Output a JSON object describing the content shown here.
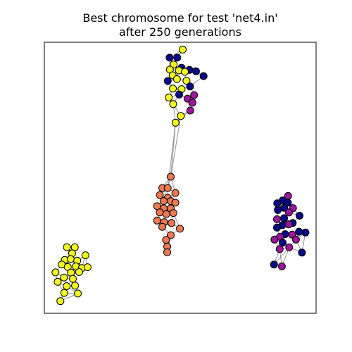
{
  "title": {
    "line1": "Best chromosome for test 'net4.in'",
    "line2": "after 250 generations"
  },
  "colors": {
    "yellow": "#f0f921",
    "navy": "#0d0887",
    "purple": "#9c179e",
    "salmon": "#ed7953",
    "edge": "#808080"
  },
  "graph": {
    "clusters": [
      {
        "name": "top-cluster",
        "nodes": [
          [
            "yellow",
            0.509,
            0.027
          ],
          [
            "navy",
            0.461,
            0.057
          ],
          [
            "navy",
            0.489,
            0.057
          ],
          [
            "yellow",
            0.476,
            0.082
          ],
          [
            "navy",
            0.505,
            0.094
          ],
          [
            "navy",
            0.534,
            0.102
          ],
          [
            "yellow",
            0.462,
            0.101
          ],
          [
            "navy",
            0.558,
            0.107
          ],
          [
            "yellow",
            0.495,
            0.104
          ],
          [
            "yellow",
            0.517,
            0.109
          ],
          [
            "navy",
            0.586,
            0.125
          ],
          [
            "yellow",
            0.472,
            0.122
          ],
          [
            "navy",
            0.454,
            0.143
          ],
          [
            "yellow",
            0.488,
            0.136
          ],
          [
            "yellow",
            0.523,
            0.142
          ],
          [
            "navy",
            0.536,
            0.163
          ],
          [
            "yellow",
            0.473,
            0.171
          ],
          [
            "yellow",
            0.505,
            0.173
          ],
          [
            "navy",
            0.496,
            0.193
          ],
          [
            "purple",
            0.551,
            0.195
          ],
          [
            "yellow",
            0.458,
            0.204
          ],
          [
            "purple",
            0.527,
            0.208
          ],
          [
            "purple",
            0.545,
            0.223
          ],
          [
            "yellow",
            0.474,
            0.228
          ],
          [
            "purple",
            0.537,
            0.252
          ],
          [
            "yellow",
            0.502,
            0.272
          ],
          [
            "yellow",
            0.483,
            0.297
          ]
        ]
      },
      {
        "name": "center-cluster",
        "nodes": [
          [
            "salmon",
            0.465,
            0.496
          ],
          [
            "salmon",
            0.434,
            0.538
          ],
          [
            "salmon",
            0.454,
            0.538
          ],
          [
            "salmon",
            0.482,
            0.556
          ],
          [
            "salmon",
            0.425,
            0.564
          ],
          [
            "salmon",
            0.454,
            0.574
          ],
          [
            "salmon",
            0.439,
            0.586
          ],
          [
            "salmon",
            0.465,
            0.586
          ],
          [
            "salmon",
            0.482,
            0.592
          ],
          [
            "salmon",
            0.415,
            0.605
          ],
          [
            "salmon",
            0.439,
            0.613
          ],
          [
            "salmon",
            0.465,
            0.613
          ],
          [
            "salmon",
            0.425,
            0.628
          ],
          [
            "salmon",
            0.449,
            0.634
          ],
          [
            "salmon",
            0.475,
            0.63
          ],
          [
            "salmon",
            0.415,
            0.658
          ],
          [
            "salmon",
            0.441,
            0.664
          ],
          [
            "salmon",
            0.468,
            0.667
          ],
          [
            "salmon",
            0.434,
            0.681
          ],
          [
            "salmon",
            0.499,
            0.688
          ],
          [
            "salmon",
            0.465,
            0.712
          ],
          [
            "salmon",
            0.448,
            0.729
          ],
          [
            "salmon",
            0.452,
            0.754
          ],
          [
            "salmon",
            0.452,
            0.775
          ]
        ]
      },
      {
        "name": "right-cluster",
        "nodes": [
          [
            "purple",
            0.897,
            0.567
          ],
          [
            "navy",
            0.877,
            0.584
          ],
          [
            "navy",
            0.896,
            0.592
          ],
          [
            "navy",
            0.857,
            0.594
          ],
          [
            "navy",
            0.882,
            0.611
          ],
          [
            "purple",
            0.915,
            0.612
          ],
          [
            "navy",
            0.859,
            0.619
          ],
          [
            "purple",
            0.9,
            0.628
          ],
          [
            "navy",
            0.939,
            0.64
          ],
          [
            "navy",
            0.882,
            0.649
          ],
          [
            "purple",
            0.856,
            0.653
          ],
          [
            "navy",
            0.914,
            0.667
          ],
          [
            "purple",
            0.899,
            0.672
          ],
          [
            "navy",
            0.876,
            0.675
          ],
          [
            "navy",
            0.856,
            0.684
          ],
          [
            "navy",
            0.937,
            0.699
          ],
          [
            "navy",
            0.961,
            0.702
          ],
          [
            "purple",
            0.912,
            0.71
          ],
          [
            "navy",
            0.886,
            0.708
          ],
          [
            "purple",
            0.867,
            0.718
          ],
          [
            "purple",
            0.847,
            0.728
          ],
          [
            "purple",
            0.926,
            0.728
          ],
          [
            "navy",
            0.877,
            0.74
          ],
          [
            "purple",
            0.901,
            0.757
          ],
          [
            "purple",
            0.866,
            0.763
          ],
          [
            "navy",
            0.948,
            0.776
          ],
          [
            "navy",
            0.845,
            0.82
          ],
          [
            "purple",
            0.874,
            0.827
          ]
        ]
      },
      {
        "name": "bottom-left-cluster",
        "nodes": [
          [
            "yellow",
            0.083,
            0.756
          ],
          [
            "yellow",
            0.112,
            0.756
          ],
          [
            "yellow",
            0.102,
            0.779
          ],
          [
            "yellow",
            0.151,
            0.786
          ],
          [
            "yellow",
            0.075,
            0.803
          ],
          [
            "yellow",
            0.097,
            0.8
          ],
          [
            "yellow",
            0.121,
            0.806
          ],
          [
            "yellow",
            0.064,
            0.82
          ],
          [
            "yellow",
            0.086,
            0.829
          ],
          [
            "yellow",
            0.116,
            0.827
          ],
          [
            "yellow",
            0.138,
            0.833
          ],
          [
            "yellow",
            0.159,
            0.83
          ],
          [
            "yellow",
            0.041,
            0.849
          ],
          [
            "yellow",
            0.098,
            0.85
          ],
          [
            "yellow",
            0.128,
            0.848
          ],
          [
            "yellow",
            0.072,
            0.868
          ],
          [
            "yellow",
            0.105,
            0.873
          ],
          [
            "yellow",
            0.049,
            0.884
          ],
          [
            "yellow",
            0.082,
            0.9
          ],
          [
            "yellow",
            0.113,
            0.898
          ],
          [
            "yellow",
            0.073,
            0.925
          ],
          [
            "yellow",
            0.123,
            0.927
          ],
          [
            "yellow",
            0.059,
            0.955
          ]
        ]
      }
    ]
  }
}
